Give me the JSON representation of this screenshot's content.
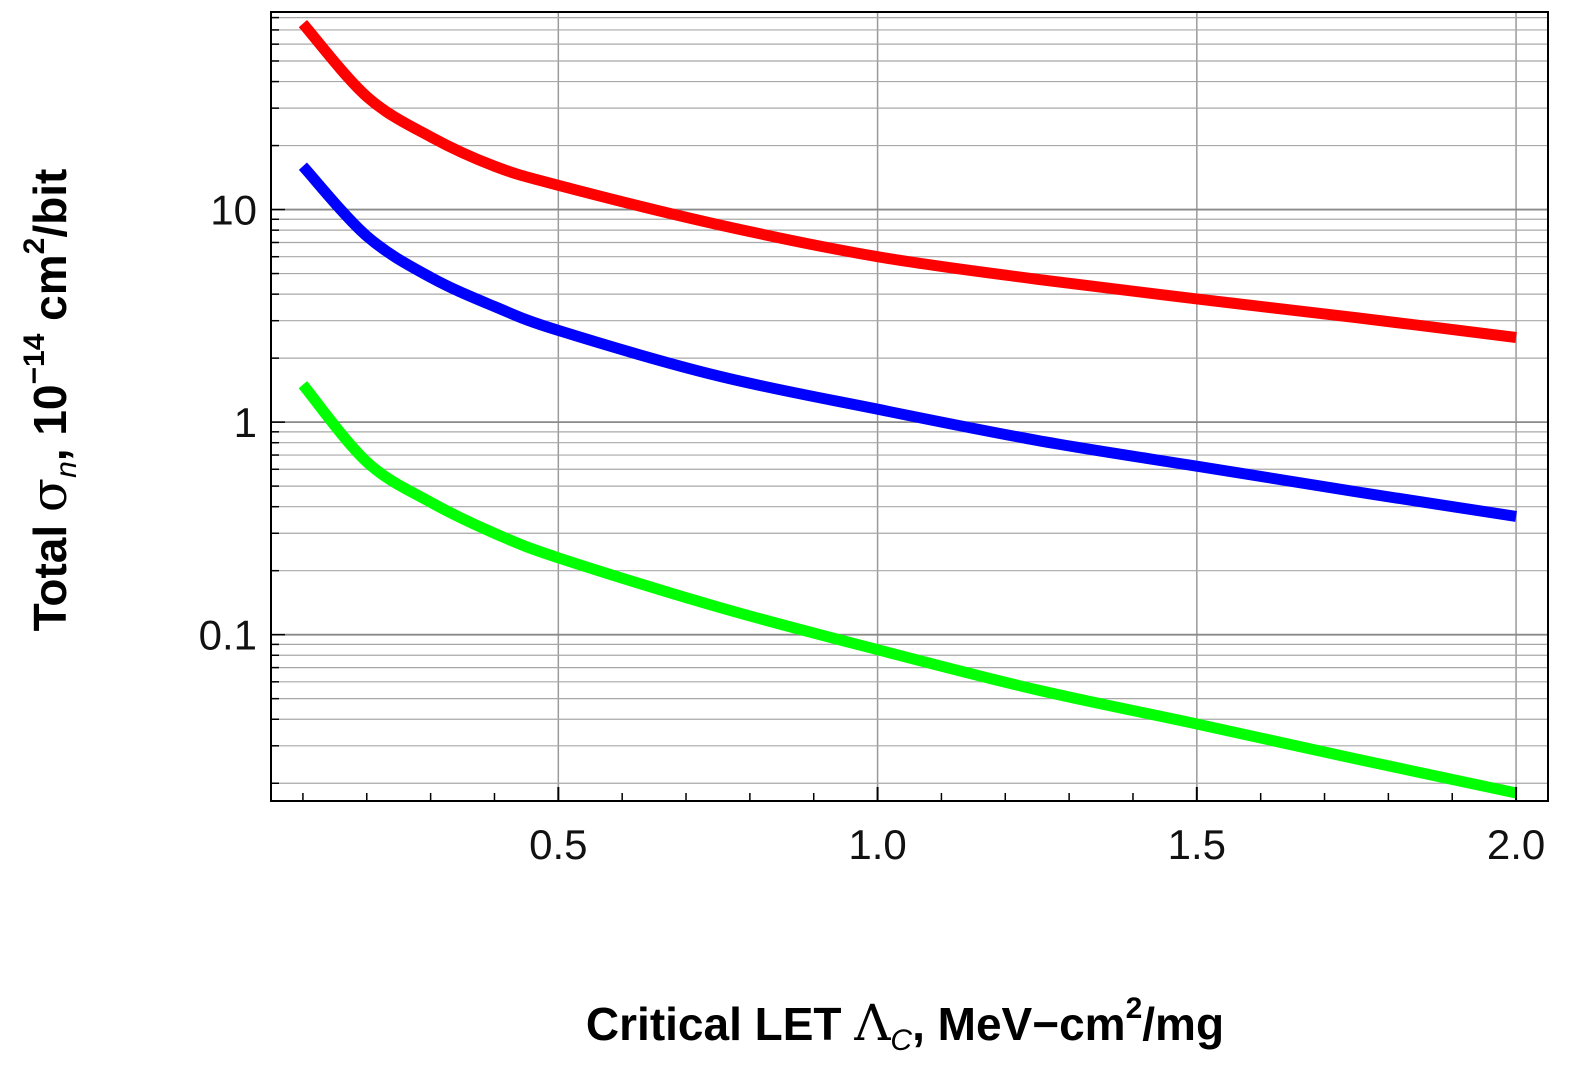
{
  "chart_data": {
    "type": "line",
    "title": "",
    "xlabel": {
      "prefix": "Critical LET ",
      "symbol": "Λ",
      "subscript": "C",
      "suffix": ",  MeV−cm",
      "sup": "2",
      "tail": "/mg"
    },
    "ylabel": {
      "prefix": "Total  ",
      "symbol": "σ",
      "subscript": "n",
      "mid": ",  10",
      "exp": "−14",
      "unit": " cm",
      "sup": "2",
      "tail": "/bit"
    },
    "xlim": [
      0.05,
      2.05
    ],
    "ylim": [
      0.0165,
      85
    ],
    "yscale": "log",
    "grid": true,
    "x_ticks": [
      0.5,
      1.0,
      1.5,
      2.0
    ],
    "x_tick_labels": [
      "0.5",
      "1.0",
      "1.5",
      "2.0"
    ],
    "y_ticks": [
      0.1,
      1,
      10
    ],
    "y_tick_labels": [
      "0.1",
      "1",
      "10"
    ],
    "series": [
      {
        "name": "red",
        "color": "#ff0000",
        "x": [
          0.1,
          0.2,
          0.3,
          0.4,
          0.5,
          0.75,
          1.0,
          1.25,
          1.5,
          1.75,
          2.0
        ],
        "y": [
          75,
          34,
          22,
          16,
          13,
          8.5,
          6.0,
          4.7,
          3.8,
          3.1,
          2.5
        ]
      },
      {
        "name": "blue",
        "color": "#0000ff",
        "x": [
          0.1,
          0.2,
          0.3,
          0.4,
          0.5,
          0.75,
          1.0,
          1.25,
          1.5,
          1.75,
          2.0
        ],
        "y": [
          16,
          7.5,
          4.8,
          3.5,
          2.7,
          1.65,
          1.15,
          0.82,
          0.62,
          0.47,
          0.36
        ]
      },
      {
        "name": "green",
        "color": "#00ff00",
        "x": [
          0.1,
          0.2,
          0.3,
          0.4,
          0.5,
          0.75,
          1.0,
          1.25,
          1.5,
          1.75,
          2.0
        ],
        "y": [
          1.5,
          0.65,
          0.42,
          0.3,
          0.23,
          0.135,
          0.085,
          0.055,
          0.038,
          0.026,
          0.018
        ]
      }
    ]
  }
}
